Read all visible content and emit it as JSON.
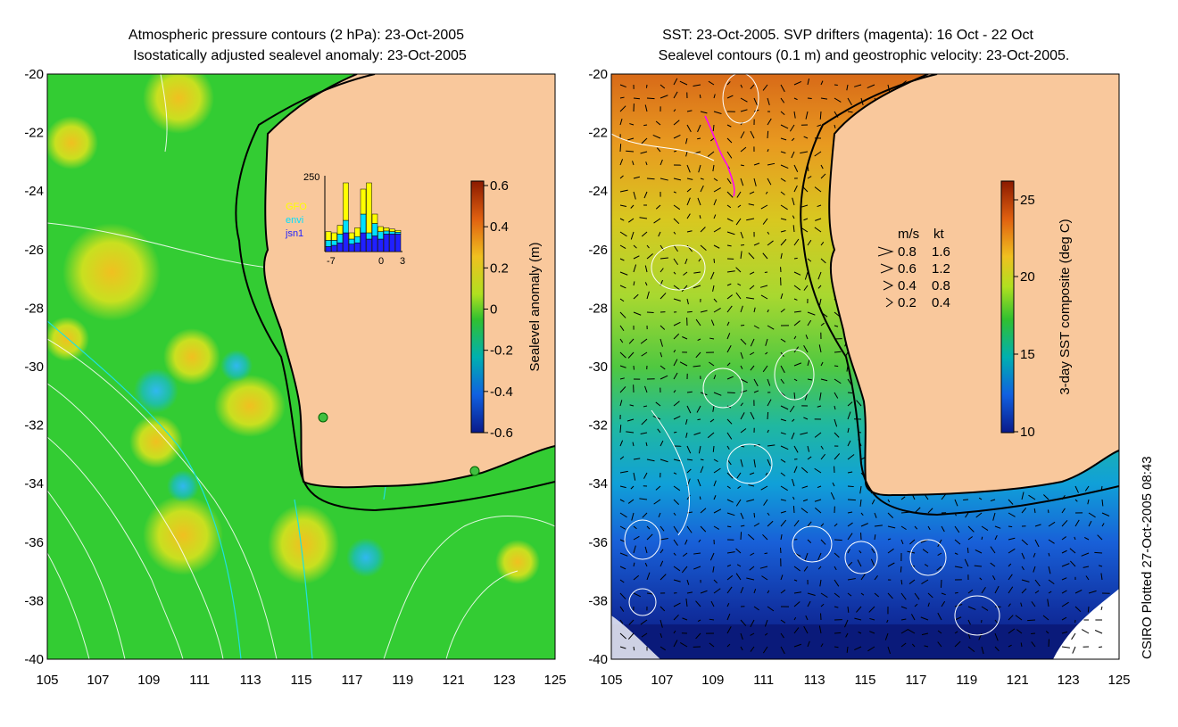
{
  "left_panel": {
    "title_line1": "Atmospheric pressure contours (2 hPa): 23-Oct-2005",
    "title_line2": "Isostatically adjusted sealevel anomaly: 23-Oct-2005",
    "colorbar_label": "Sealevel anomaly (m)",
    "colorbar_ticks": [
      "0.6",
      "0.4",
      "0.2",
      "0",
      "-0.2",
      "-0.4",
      "-0.6"
    ],
    "inset": {
      "ymax_label": "250",
      "legend": [
        "GFO",
        "envi",
        "jsn1"
      ],
      "legend_colors": [
        "#ffff00",
        "#00e0ff",
        "#2020ff"
      ],
      "x_labels": [
        "-7",
        "0",
        "3"
      ]
    }
  },
  "right_panel": {
    "title_line1": "SST: 23-Oct-2005. SVP drifters (magenta): 16 Oct - 22 Oct",
    "title_line2": "Sealevel contours (0.1 m) and geostrophic velocity: 23-Oct-2005.",
    "colorbar_label": "3-day SST composite (deg C)",
    "colorbar_ticks": [
      "25",
      "20",
      "15",
      "10"
    ],
    "speed_legend": {
      "header_ms": "m/s",
      "header_kt": "kt",
      "rows": [
        {
          "ms": "0.8",
          "kt": "1.6"
        },
        {
          "ms": "0.6",
          "kt": "1.2"
        },
        {
          "ms": "0.4",
          "kt": "0.8"
        },
        {
          "ms": "0.2",
          "kt": "0.4"
        }
      ]
    }
  },
  "axes": {
    "y_ticks": [
      "-20",
      "-22",
      "-24",
      "-26",
      "-28",
      "-30",
      "-32",
      "-34",
      "-36",
      "-38",
      "-40"
    ],
    "x_ticks": [
      "105",
      "107",
      "109",
      "111",
      "113",
      "115",
      "117",
      "119",
      "121",
      "123",
      "125"
    ]
  },
  "credit": "CSIRO Plotted 27-Oct-2005 08:43",
  "colors": {
    "land": "#f9c89c",
    "coast": "#000000",
    "sla_neutral": "#33cc33",
    "pressure_contour": "#ffffff",
    "sst_warm": "#e07818",
    "sst_cold": "#0a1a8a",
    "drifter": "#ff00ff"
  }
}
